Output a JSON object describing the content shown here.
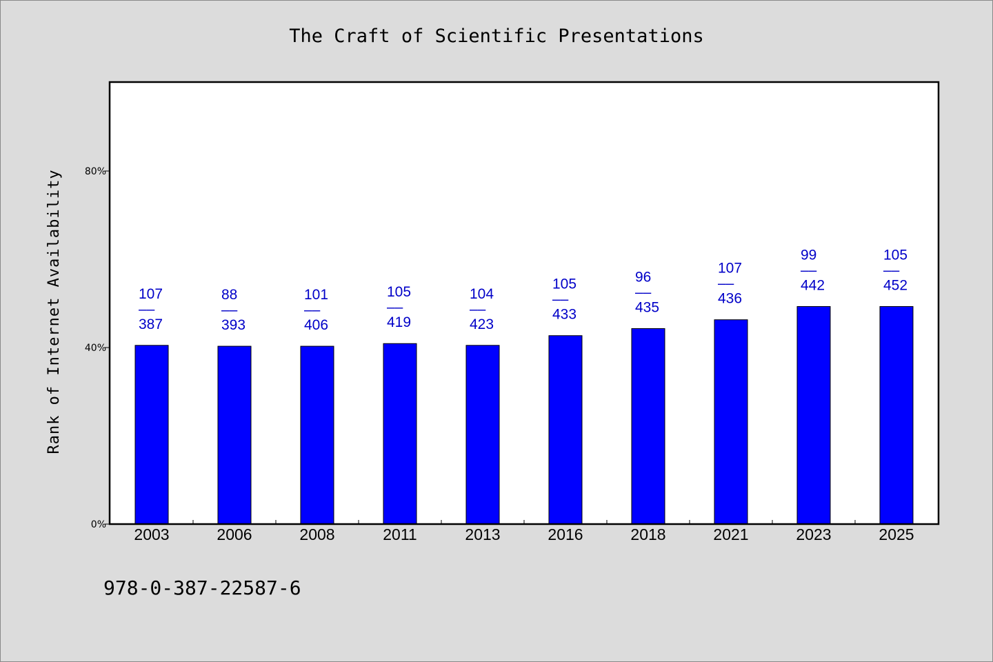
{
  "chart_data": {
    "type": "bar",
    "title": "The Craft of Scientific Presentations",
    "xlabel": "",
    "ylabel": "Rank of Internet Availability",
    "ylim": [
      0,
      100
    ],
    "yticks": [
      {
        "value": 0,
        "label": "0%"
      },
      {
        "value": 40,
        "label": "40%"
      },
      {
        "value": 80,
        "label": "80%"
      }
    ],
    "categories": [
      "2003",
      "2006",
      "2008",
      "2011",
      "2013",
      "2016",
      "2018",
      "2021",
      "2023",
      "2025"
    ],
    "values": [
      40.5,
      40.3,
      40.3,
      40.9,
      40.5,
      42.7,
      44.3,
      46.3,
      49.3,
      49.3
    ],
    "labels": [
      {
        "top": "107",
        "sep": "––",
        "bottom": "387"
      },
      {
        "top": "88",
        "sep": "––",
        "bottom": "393"
      },
      {
        "top": "101",
        "sep": "––",
        "bottom": "406"
      },
      {
        "top": "105",
        "sep": "––",
        "bottom": "419"
      },
      {
        "top": "104",
        "sep": "––",
        "bottom": "423"
      },
      {
        "top": "105",
        "sep": "––",
        "bottom": "433"
      },
      {
        "top": "96",
        "sep": "––",
        "bottom": "435"
      },
      {
        "top": "107",
        "sep": "––",
        "bottom": "436"
      },
      {
        "top": "99",
        "sep": "––",
        "bottom": "442"
      },
      {
        "top": "105",
        "sep": "––",
        "bottom": "452"
      }
    ],
    "bar_color": "#0000ff",
    "label_color": "#0000c8",
    "grid": false,
    "legend": "none"
  },
  "footer": {
    "isbn": "978-0-387-22587-6"
  }
}
